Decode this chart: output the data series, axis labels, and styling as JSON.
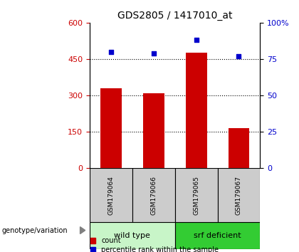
{
  "title": "GDS2805 / 1417010_at",
  "samples": [
    "GSM179064",
    "GSM179066",
    "GSM179065",
    "GSM179067"
  ],
  "counts": [
    330,
    310,
    475,
    165
  ],
  "percentiles": [
    80,
    79,
    88,
    77
  ],
  "ylim_left": [
    0,
    600
  ],
  "ylim_right": [
    0,
    100
  ],
  "yticks_left": [
    0,
    150,
    300,
    450,
    600
  ],
  "yticks_right": [
    0,
    25,
    50,
    75,
    100
  ],
  "bar_color": "#cc0000",
  "dot_color": "#0000cc",
  "groups": [
    {
      "label": "wild type",
      "indices": [
        0,
        1
      ],
      "color": "#c8f5c8"
    },
    {
      "label": "srf deficient",
      "indices": [
        2,
        3
      ],
      "color": "#33cc33"
    }
  ],
  "group_label_prefix": "genotype/variation",
  "legend_bar_label": "count",
  "legend_dot_label": "percentile rank within the sample",
  "title_fontsize": 10,
  "axis_label_color_left": "#cc0000",
  "axis_label_color_right": "#0000cc",
  "sample_box_color": "#cccccc",
  "bar_width": 0.5
}
